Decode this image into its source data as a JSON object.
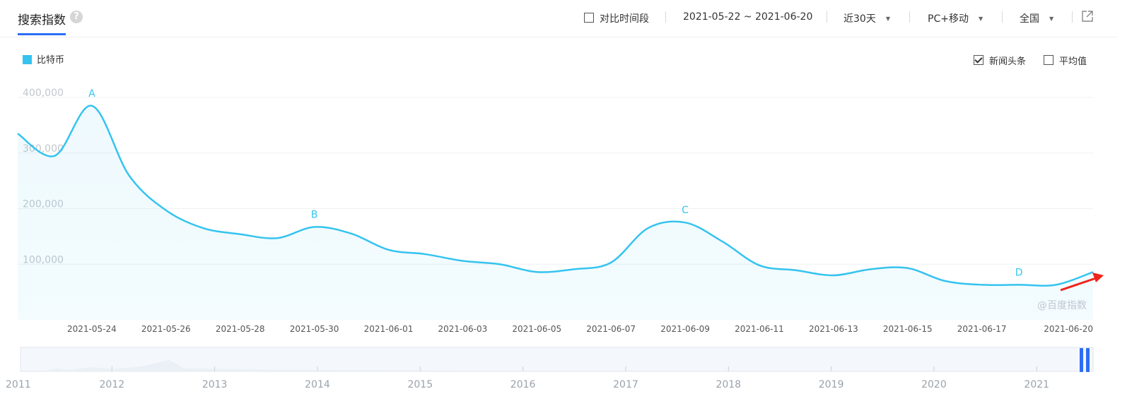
{
  "header": {
    "title": "搜索指数",
    "help_icon": "?",
    "compare_label": "对比时间段",
    "date_range": "2021-05-22 ~ 2021-06-20",
    "period": "近30天",
    "device": "PC+移动",
    "region": "全国"
  },
  "options": {
    "news_label": "新闻头条",
    "news_checked": true,
    "average_label": "平均值",
    "average_checked": false
  },
  "watermark": "@百度指数",
  "chart_data": {
    "type": "area",
    "series": [
      {
        "name": "比特币",
        "color": "#35c3ef",
        "x": [
          "2021-05-22",
          "2021-05-23",
          "2021-05-24",
          "2021-05-25",
          "2021-05-26",
          "2021-05-27",
          "2021-05-28",
          "2021-05-29",
          "2021-05-30",
          "2021-05-31",
          "2021-06-01",
          "2021-06-02",
          "2021-06-03",
          "2021-06-04",
          "2021-06-05",
          "2021-06-06",
          "2021-06-07",
          "2021-06-08",
          "2021-06-09",
          "2021-06-10",
          "2021-06-11",
          "2021-06-12",
          "2021-06-13",
          "2021-06-14",
          "2021-06-15",
          "2021-06-16",
          "2021-06-17",
          "2021-06-18",
          "2021-06-19",
          "2021-06-20"
        ],
        "values": [
          335000,
          295000,
          385000,
          260000,
          197000,
          165000,
          154000,
          147000,
          167000,
          155000,
          126000,
          118000,
          106000,
          100000,
          86000,
          91000,
          103000,
          165000,
          175000,
          141000,
          98000,
          89000,
          80000,
          91000,
          93000,
          70000,
          63000,
          63000,
          63000,
          86000
        ]
      }
    ],
    "x_tick_labels": [
      "2021-05-24",
      "2021-05-26",
      "2021-05-28",
      "2021-05-30",
      "2021-06-01",
      "2021-06-03",
      "2021-06-05",
      "2021-06-07",
      "2021-06-09",
      "2021-06-11",
      "2021-06-13",
      "2021-06-15",
      "2021-06-17",
      "2021-06-20"
    ],
    "y_ticks": [
      100000,
      200000,
      300000,
      400000
    ],
    "y_tick_labels": [
      "100,000",
      "200,000",
      "300,000",
      "400,000"
    ],
    "ylim": [
      0,
      400000
    ],
    "grid": true,
    "annotations": [
      {
        "label": "A",
        "x": "2021-05-24",
        "y": 385000
      },
      {
        "label": "B",
        "x": "2021-05-30",
        "y": 167000
      },
      {
        "label": "C",
        "x": "2021-06-09",
        "y": 175000
      },
      {
        "label": "D",
        "x": "2021-06-18",
        "y": 63000
      }
    ],
    "overview_years": [
      "2011",
      "2012",
      "2013",
      "2014",
      "2015",
      "2016",
      "2017",
      "2018",
      "2019",
      "2020",
      "2021"
    ]
  }
}
